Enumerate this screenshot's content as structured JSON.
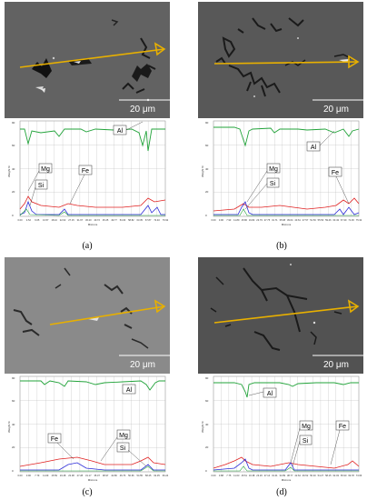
{
  "panels": [
    {
      "id": "a",
      "caption": "(a)",
      "scale_bar": "20 μm",
      "x_axis_label": "Microns",
      "y_axis_label": "Weight %",
      "ticks": [
        "0.00",
        "4.52",
        "9.05",
        "13.57",
        "18.10",
        "22.62",
        "27.15",
        "31.67",
        "36.20",
        "40.72",
        "45.25",
        "49.77",
        "54.30",
        "58.82",
        "63.35",
        "67.87",
        "72.40",
        "76.92"
      ],
      "labels": [
        "Al",
        "Mg",
        "Si",
        "Fe"
      ]
    },
    {
      "id": "b",
      "caption": "(b)",
      "scale_bar": "20 μm",
      "x_axis_label": "Microns",
      "y_axis_label": "Weight %",
      "ticks": [
        "0.00",
        "3.96",
        "7.93",
        "11.89",
        "15.86",
        "19.82",
        "23.79",
        "27.75",
        "31.71",
        "35.68",
        "39.64",
        "43.61",
        "47.57",
        "51.53",
        "55.50",
        "59.46",
        "63.43",
        "67.39",
        "71.36",
        "75.32"
      ],
      "labels": [
        "Al",
        "Mg",
        "Si",
        "Fe"
      ]
    },
    {
      "id": "c",
      "caption": "(c)",
      "scale_bar": "20 μm",
      "x_axis_label": "Microns",
      "y_axis_label": "Weight %",
      "ticks": [
        "0.00",
        "3.90",
        "7.79",
        "11.69",
        "15.59",
        "19.48",
        "23.38",
        "27.28",
        "31.17",
        "35.07",
        "38.97",
        "42.86",
        "46.76",
        "50.66",
        "54.55",
        "58.45",
        "62.35",
        "66.24"
      ],
      "labels": [
        "Al",
        "Fe",
        "Mg",
        "Si"
      ]
    },
    {
      "id": "d",
      "caption": "(d)",
      "scale_bar": "20 μm",
      "x_axis_label": "Microns",
      "y_axis_label": "Weight %",
      "ticks": [
        "0.00",
        "3.88",
        "7.75",
        "11.63",
        "15.51",
        "19.38",
        "23.26",
        "27.14",
        "31.01",
        "34.89",
        "38.77",
        "42.64",
        "46.52",
        "50.40",
        "54.27",
        "58.15",
        "62.03",
        "65.90",
        "69.78",
        "73.66"
      ],
      "labels": [
        "Al",
        "Mg",
        "Si",
        "Fe"
      ]
    }
  ],
  "colors": {
    "al": "#22a33a",
    "mg": "#2b2bd8",
    "si": "#22a33a",
    "fe": "#e02020",
    "arrow": "#e8b000",
    "grid": "#b8b8b8"
  }
}
